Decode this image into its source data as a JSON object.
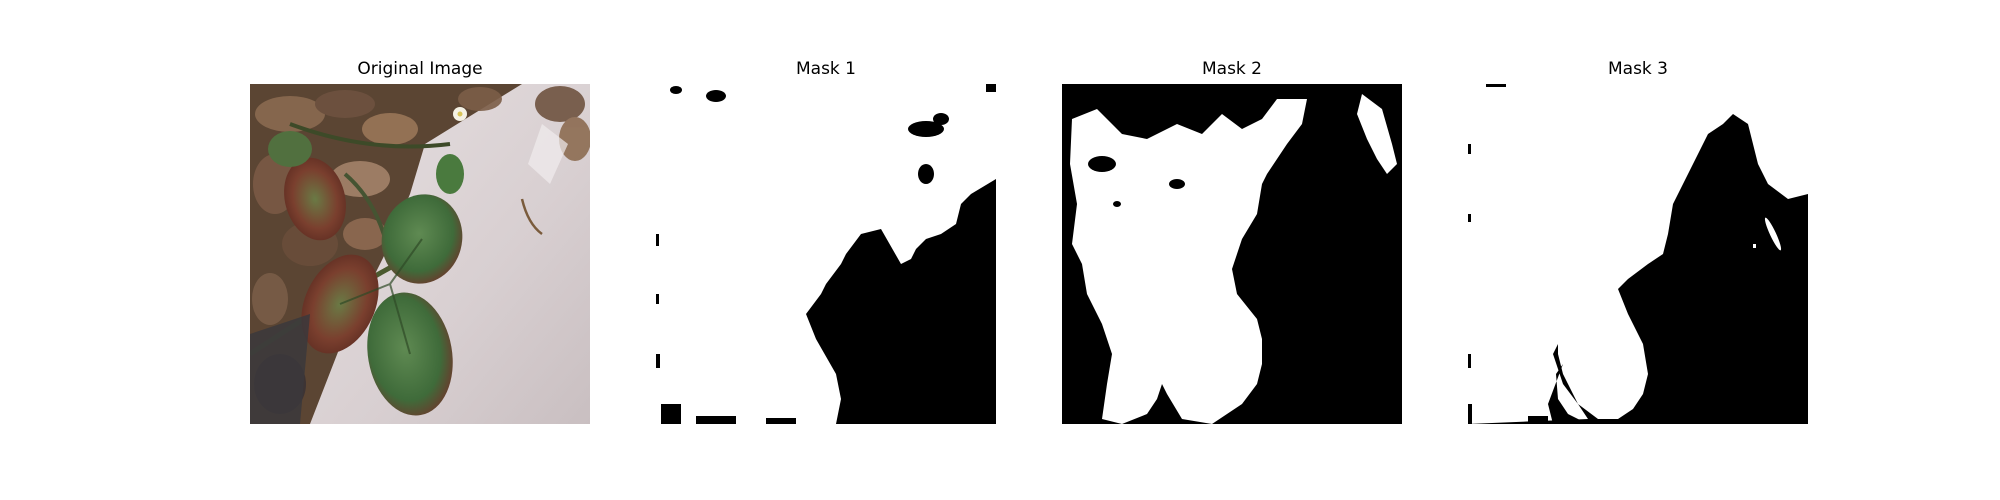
{
  "figure": {
    "panels": [
      {
        "title": "Original Image"
      },
      {
        "title": "Mask 1"
      },
      {
        "title": "Mask 2"
      },
      {
        "title": "Mask 3"
      }
    ]
  }
}
